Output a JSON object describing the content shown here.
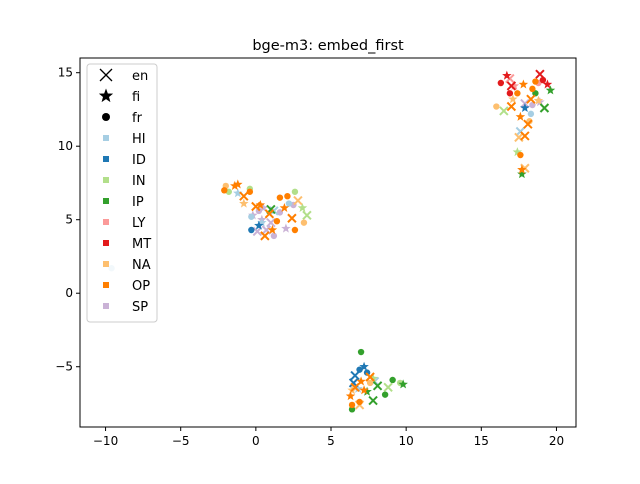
{
  "chart_data": {
    "type": "scatter",
    "title": "bge-m3: embed_first",
    "xlabel": "",
    "ylabel": "",
    "xlim": [
      -11.7,
      21.3
    ],
    "ylim": [
      -9.1,
      16.0
    ],
    "xticks": [
      -10,
      -5,
      0,
      5,
      10,
      15,
      20
    ],
    "xtick_labels": [
      "−10",
      "−5",
      "0",
      "5",
      "10",
      "15",
      "20"
    ],
    "yticks": [
      -5,
      0,
      5,
      10,
      15
    ],
    "ytick_labels": [
      "−5",
      "0",
      "5",
      "10",
      "15"
    ],
    "grid": false,
    "legend_position": "upper left",
    "marker_legend": [
      {
        "label": "en",
        "marker": "x"
      },
      {
        "label": "fi",
        "marker": "star"
      },
      {
        "label": "fr",
        "marker": "circle"
      }
    ],
    "series": [
      {
        "name": "HI",
        "color": "#a6cee3",
        "points": [
          [
            -0.3,
            5.2
          ],
          [
            0.4,
            4.8
          ],
          [
            1.2,
            5.6
          ],
          [
            2.2,
            6.1
          ],
          [
            -1.2,
            6.8
          ],
          [
            17.6,
            11.0
          ],
          [
            18.3,
            12.2
          ],
          [
            6.8,
            -6.5
          ],
          [
            7.9,
            -6.0
          ],
          [
            -9.6,
            1.7
          ]
        ]
      },
      {
        "name": "ID",
        "color": "#1f78b4",
        "points": [
          [
            -0.3,
            4.3
          ],
          [
            0.2,
            4.6
          ],
          [
            6.6,
            -5.6
          ],
          [
            6.9,
            -5.2
          ],
          [
            7.2,
            -5.0
          ],
          [
            6.5,
            -6.1
          ],
          [
            7.4,
            -5.4
          ],
          [
            17.9,
            12.6
          ]
        ]
      },
      {
        "name": "IN",
        "color": "#b2df8a",
        "points": [
          [
            -1.8,
            6.9
          ],
          [
            3.1,
            5.8
          ],
          [
            3.4,
            5.3
          ],
          [
            2.6,
            6.9
          ],
          [
            7.8,
            -5.8
          ],
          [
            8.8,
            -6.4
          ],
          [
            9.6,
            -6.1
          ],
          [
            17.4,
            9.6
          ],
          [
            16.5,
            12.4
          ],
          [
            -0.4,
            7.1
          ]
        ]
      },
      {
        "name": "IP",
        "color": "#33a02c",
        "points": [
          [
            7.0,
            -4.0
          ],
          [
            7.4,
            -6.7
          ],
          [
            8.1,
            -6.3
          ],
          [
            9.1,
            -5.9
          ],
          [
            9.8,
            -6.2
          ],
          [
            7.8,
            -7.3
          ],
          [
            8.6,
            -6.9
          ],
          [
            19.6,
            13.8
          ],
          [
            19.2,
            12.6
          ],
          [
            18.6,
            13.6
          ],
          [
            17.7,
            8.1
          ],
          [
            1.0,
            5.7
          ],
          [
            6.4,
            -7.9
          ]
        ]
      },
      {
        "name": "LY",
        "color": "#fb9a99",
        "points": [
          [
            18.8,
            14.3
          ],
          [
            17.2,
            14.1
          ],
          [
            16.9,
            14.6
          ]
        ]
      },
      {
        "name": "MT",
        "color": "#e31a1c",
        "points": [
          [
            16.3,
            14.3
          ],
          [
            16.7,
            14.8
          ],
          [
            17.0,
            14.1
          ],
          [
            19.1,
            14.5
          ],
          [
            19.4,
            14.2
          ],
          [
            18.9,
            14.9
          ],
          [
            16.9,
            13.6
          ]
        ]
      },
      {
        "name": "NA",
        "color": "#fdbf6f",
        "points": [
          [
            16.0,
            12.7
          ],
          [
            17.1,
            13.2
          ],
          [
            17.5,
            10.6
          ],
          [
            18.2,
            11.7
          ],
          [
            18.8,
            13.1
          ],
          [
            17.9,
            8.5
          ],
          [
            -2.0,
            7.3
          ],
          [
            -0.8,
            6.1
          ],
          [
            2.8,
            6.3
          ],
          [
            3.2,
            4.8
          ],
          [
            6.4,
            -6.6
          ],
          [
            6.9,
            -7.6
          ],
          [
            7.6,
            -6.1
          ]
        ]
      },
      {
        "name": "OP",
        "color": "#ff7f00",
        "points": [
          [
            -2.1,
            7.0
          ],
          [
            -1.4,
            7.3
          ],
          [
            -0.8,
            6.6
          ],
          [
            -0.4,
            6.9
          ],
          [
            0.3,
            6.0
          ],
          [
            0.9,
            5.4
          ],
          [
            1.4,
            4.9
          ],
          [
            1.9,
            5.8
          ],
          [
            2.4,
            5.1
          ],
          [
            1.6,
            6.5
          ],
          [
            1.1,
            4.3
          ],
          [
            0.6,
            3.9
          ],
          [
            2.6,
            4.3
          ],
          [
            -1.2,
            7.4
          ],
          [
            0.0,
            5.9
          ],
          [
            2.1,
            6.6
          ],
          [
            6.3,
            -7.0
          ],
          [
            6.6,
            -6.4
          ],
          [
            6.9,
            -7.4
          ],
          [
            7.2,
            -6.6
          ],
          [
            7.6,
            -5.7
          ],
          [
            6.4,
            -7.6
          ],
          [
            7.0,
            -6.0
          ],
          [
            17.0,
            12.7
          ],
          [
            17.4,
            13.6
          ],
          [
            17.8,
            14.2
          ],
          [
            18.3,
            13.2
          ],
          [
            18.6,
            14.4
          ],
          [
            17.6,
            12.0
          ],
          [
            17.9,
            10.7
          ],
          [
            17.6,
            9.4
          ],
          [
            17.7,
            8.4
          ],
          [
            18.1,
            11.5
          ],
          [
            18.4,
            13.9
          ]
        ]
      },
      {
        "name": "SP",
        "color": "#cab2d6",
        "points": [
          [
            0.2,
            5.6
          ],
          [
            0.4,
            5.0
          ],
          [
            1.0,
            4.8
          ],
          [
            1.2,
            3.9
          ],
          [
            2.0,
            4.4
          ],
          [
            0.7,
            4.3
          ],
          [
            2.5,
            6.0
          ],
          [
            -0.2,
            5.3
          ],
          [
            0.1,
            4.2
          ],
          [
            18.4,
            12.8
          ],
          [
            18.9,
            13.0
          ],
          [
            17.9,
            12.9
          ],
          [
            1.6,
            5.5
          ],
          [
            0.5,
            5.8
          ]
        ]
      }
    ]
  }
}
